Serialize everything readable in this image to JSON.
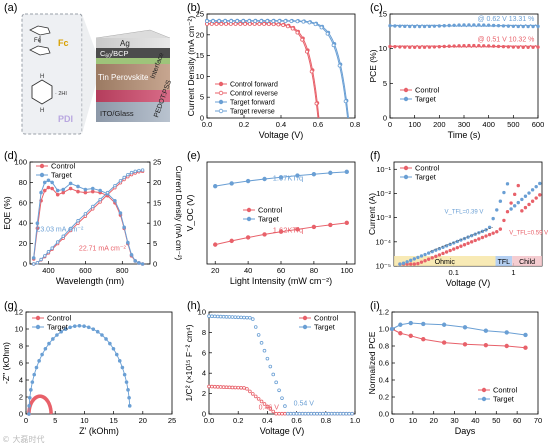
{
  "colors": {
    "control": "#e8616a",
    "target": "#6a9fd4",
    "control_fill": "#f2a3a8",
    "target_fill": "#a9c8ea"
  },
  "watermark": "© 大磊时代",
  "panel_a": {
    "label": "(a)",
    "molecule_fc": "Fc",
    "fe": "Fe",
    "molecule_pdi": "PDI",
    "hi": "· 2HI",
    "layers": [
      "Ag",
      "C60/BCP",
      "Interface",
      "Tin Perovskite",
      "PEDOT:PSS",
      "ITO/Glass"
    ],
    "c60_main": "C",
    "c60_sub": "60",
    "c60_rest": "/BCP"
  },
  "chart_data": [
    {
      "id": "b",
      "label": "(b)",
      "type": "line",
      "xlabel": "Voltage (V)",
      "ylabel": "Current Density (mA cm⁻²)",
      "xlim": [
        0,
        0.8
      ],
      "ylim": [
        0,
        25
      ],
      "xticks": [
        0.0,
        0.2,
        0.4,
        0.6,
        0.8
      ],
      "yticks": [
        0,
        5,
        10,
        15,
        20,
        25
      ],
      "legend": "bottom-left",
      "series": [
        {
          "name": "Control forward",
          "color": "control",
          "marker": "filled",
          "jsc": 22.7,
          "voc": 0.605,
          "ff": 0.7
        },
        {
          "name": "Control reverse",
          "color": "control",
          "marker": "open",
          "jsc": 22.6,
          "voc": 0.6,
          "ff": 0.69
        },
        {
          "name": "Target forward",
          "color": "target",
          "marker": "filled",
          "jsc": 23.4,
          "voc": 0.765,
          "ff": 0.74
        },
        {
          "name": "Target reverse",
          "color": "target",
          "marker": "open",
          "jsc": 23.3,
          "voc": 0.76,
          "ff": 0.73
        }
      ]
    },
    {
      "id": "c",
      "label": "(c)",
      "type": "line",
      "xlabel": "Time (s)",
      "ylabel": "PCE (%)",
      "xlim": [
        0,
        600
      ],
      "ylim": [
        0,
        15
      ],
      "xticks": [
        0,
        100,
        200,
        300,
        400,
        500,
        600
      ],
      "yticks": [
        0,
        5,
        10,
        15
      ],
      "legend": "bottom-left",
      "annotations": [
        {
          "text": "@ 0.62 V 13.31 %",
          "color": "target",
          "x": 470,
          "y": 14.0
        },
        {
          "text": "@ 0.51 V 10.32 %",
          "color": "control",
          "x": 470,
          "y": 11.0
        }
      ],
      "series": [
        {
          "name": "Control",
          "color": "control",
          "value": 10.32
        },
        {
          "name": "Target",
          "color": "target",
          "value": 13.31
        }
      ]
    },
    {
      "id": "d",
      "label": "(d)",
      "type": "line",
      "xlabel": "Wavelength (nm)",
      "ylabel": "EQE (%)",
      "y2label": "Current Density (mA cm⁻²)",
      "xlim": [
        300,
        950
      ],
      "ylim": [
        0,
        100
      ],
      "y2lim": [
        0,
        25
      ],
      "xticks": [
        400,
        600,
        800
      ],
      "yticks": [
        0,
        20,
        40,
        60,
        80,
        100
      ],
      "y2ticks": [
        0,
        5,
        10,
        15,
        20,
        25
      ],
      "legend": "top-left",
      "annotations": [
        {
          "text": "23.03 mA cm⁻²",
          "color": "target",
          "x": 335,
          "y": 32
        },
        {
          "text": "22.71 mA cm⁻²",
          "color": "control",
          "x": 565,
          "y": 13
        }
      ],
      "series": [
        {
          "name": "Control",
          "color": "control",
          "wl": [
            320,
            340,
            360,
            380,
            400,
            420,
            450,
            480,
            520,
            560,
            600,
            640,
            680,
            720,
            760,
            790,
            810,
            830,
            850,
            870,
            890,
            910
          ],
          "eqe": [
            5,
            35,
            62,
            72,
            75,
            74,
            68,
            70,
            74,
            71,
            70,
            71,
            70,
            67,
            60,
            48,
            35,
            20,
            8,
            3,
            1,
            0
          ],
          "jint": [
            0,
            0.3,
            1.0,
            1.8,
            2.7,
            3.6,
            5.0,
            6.3,
            8.2,
            10.0,
            11.7,
            13.5,
            15.2,
            17.0,
            18.7,
            19.9,
            20.7,
            21.4,
            21.9,
            22.3,
            22.6,
            22.71
          ]
        },
        {
          "name": "Target",
          "color": "target",
          "wl": [
            320,
            340,
            360,
            380,
            400,
            420,
            450,
            480,
            520,
            560,
            600,
            640,
            680,
            720,
            760,
            790,
            810,
            830,
            850,
            870,
            890,
            910
          ],
          "eqe": [
            6,
            40,
            70,
            80,
            82,
            80,
            72,
            73,
            79,
            76,
            73,
            74,
            72,
            69,
            62,
            50,
            36,
            21,
            9,
            3,
            1,
            0
          ],
          "jint": [
            0,
            0.3,
            1.1,
            2.0,
            3.0,
            3.9,
            5.4,
            6.8,
            8.7,
            10.6,
            12.3,
            14.1,
            15.8,
            17.5,
            19.2,
            20.4,
            21.2,
            21.9,
            22.4,
            22.7,
            22.9,
            23.03
          ]
        }
      ]
    },
    {
      "id": "e",
      "label": "(e)",
      "type": "scatter",
      "xlabel": "Light Intensity (mW cm⁻²)",
      "ylabel": "V_OC (V)",
      "xlim": [
        15,
        105
      ],
      "ylim": [
        0.5,
        0.8
      ],
      "xticks": [
        20,
        40,
        60,
        80,
        100
      ],
      "legend": "center",
      "annotations": [
        {
          "text": "1.07KT/q",
          "color": "target",
          "x": 55,
          "y": 0.745
        },
        {
          "text": "1.62KT/q",
          "color": "control",
          "x": 55,
          "y": 0.593
        }
      ],
      "series": [
        {
          "name": "Control",
          "color": "control",
          "x": [
            20,
            30,
            40,
            50,
            60,
            70,
            80,
            90,
            100
          ],
          "y": [
            0.557,
            0.568,
            0.578,
            0.587,
            0.595,
            0.602,
            0.609,
            0.615,
            0.621
          ]
        },
        {
          "name": "Target",
          "color": "target",
          "x": [
            20,
            30,
            40,
            50,
            60,
            70,
            80,
            90,
            100
          ],
          "y": [
            0.729,
            0.737,
            0.744,
            0.75,
            0.755,
            0.76,
            0.764,
            0.768,
            0.771
          ]
        }
      ]
    },
    {
      "id": "f",
      "label": "(f)",
      "type": "scatter",
      "xlabel": "Voltage (V)",
      "ylabel": "Current (A)",
      "xscale": "log",
      "yscale": "log",
      "xlim": [
        0.01,
        3
      ],
      "ylim": [
        1e-05,
        0.2
      ],
      "xticks": [
        0.1,
        1
      ],
      "yticks": [
        1e-05,
        0.0001,
        0.001,
        0.01,
        0.1
      ],
      "xtick_labels": [
        "0.1",
        "1"
      ],
      "ytick_labels": [
        "10⁻⁵",
        "10⁻⁴",
        "10⁻³",
        "10⁻²",
        "10⁻¹"
      ],
      "legend": "top-left",
      "regions": [
        {
          "text": "Ohmic"
        },
        {
          "text": "TFL"
        },
        {
          "text": "Child"
        }
      ],
      "annotations": [
        {
          "text": "V_TFL=0.39 V",
          "color": "target"
        },
        {
          "text": "V_TFL=0.59 V",
          "color": "control"
        }
      ],
      "series": [
        {
          "name": "Control",
          "color": "control"
        },
        {
          "name": "Target",
          "color": "target"
        }
      ]
    },
    {
      "id": "g",
      "label": "(g)",
      "type": "scatter",
      "xlabel": "Z' (kOhm)",
      "ylabel": "-Z'' (kOhm)",
      "xlim": [
        0,
        25
      ],
      "ylim": [
        0,
        12
      ],
      "xticks": [
        0,
        5,
        10,
        15,
        20,
        25
      ],
      "yticks": [
        0,
        2,
        4,
        6,
        8,
        10,
        12
      ],
      "legend": "top-left",
      "series": [
        {
          "name": "Control",
          "color": "control",
          "r0": 0.5,
          "r": 3.8
        },
        {
          "name": "Target",
          "color": "target",
          "r0": 0.5,
          "r": 17.3
        }
      ]
    },
    {
      "id": "h",
      "label": "(h)",
      "type": "scatter",
      "xlabel": "Voltage (V)",
      "ylabel": "1/C² (×10¹⁵ F⁻² cm⁴)",
      "xlim": [
        0,
        1.0
      ],
      "ylim": [
        0,
        10
      ],
      "xticks": [
        0.0,
        0.2,
        0.4,
        0.6,
        0.8,
        1.0
      ],
      "yticks": [
        0,
        2,
        4,
        6,
        8,
        10
      ],
      "legend": "top-right",
      "annotations": [
        {
          "text": "0.46 V",
          "color": "control",
          "x": 0.34,
          "y": 0.15
        },
        {
          "text": "0.54 V",
          "color": "target",
          "x": 0.58,
          "y": 0.55
        }
      ],
      "series": [
        {
          "name": "Control",
          "color": "control",
          "vbi": 0.46,
          "plateau": 2.7
        },
        {
          "name": "Target",
          "color": "target",
          "vbi": 0.54,
          "plateau": 9.6
        }
      ]
    },
    {
      "id": "i",
      "label": "(i)",
      "type": "line",
      "xlabel": "Days",
      "ylabel": "Normalized PCE",
      "xlim": [
        0,
        70
      ],
      "ylim": [
        0,
        1.2
      ],
      "xticks": [
        0,
        10,
        20,
        30,
        40,
        50,
        60,
        70
      ],
      "yticks": [
        0.0,
        0.2,
        0.4,
        0.6,
        0.8,
        1.0,
        1.2
      ],
      "legend": "bottom-right",
      "series": [
        {
          "name": "Control",
          "color": "control",
          "x": [
            0,
            4,
            9,
            15,
            25,
            35,
            45,
            55,
            64
          ],
          "y": [
            1.0,
            0.95,
            0.92,
            0.88,
            0.84,
            0.82,
            0.81,
            0.8,
            0.78
          ]
        },
        {
          "name": "Target",
          "color": "target",
          "x": [
            0,
            4,
            9,
            15,
            25,
            35,
            45,
            55,
            64
          ],
          "y": [
            1.0,
            1.05,
            1.07,
            1.06,
            1.05,
            1.02,
            0.98,
            0.96,
            0.93
          ]
        }
      ]
    }
  ]
}
